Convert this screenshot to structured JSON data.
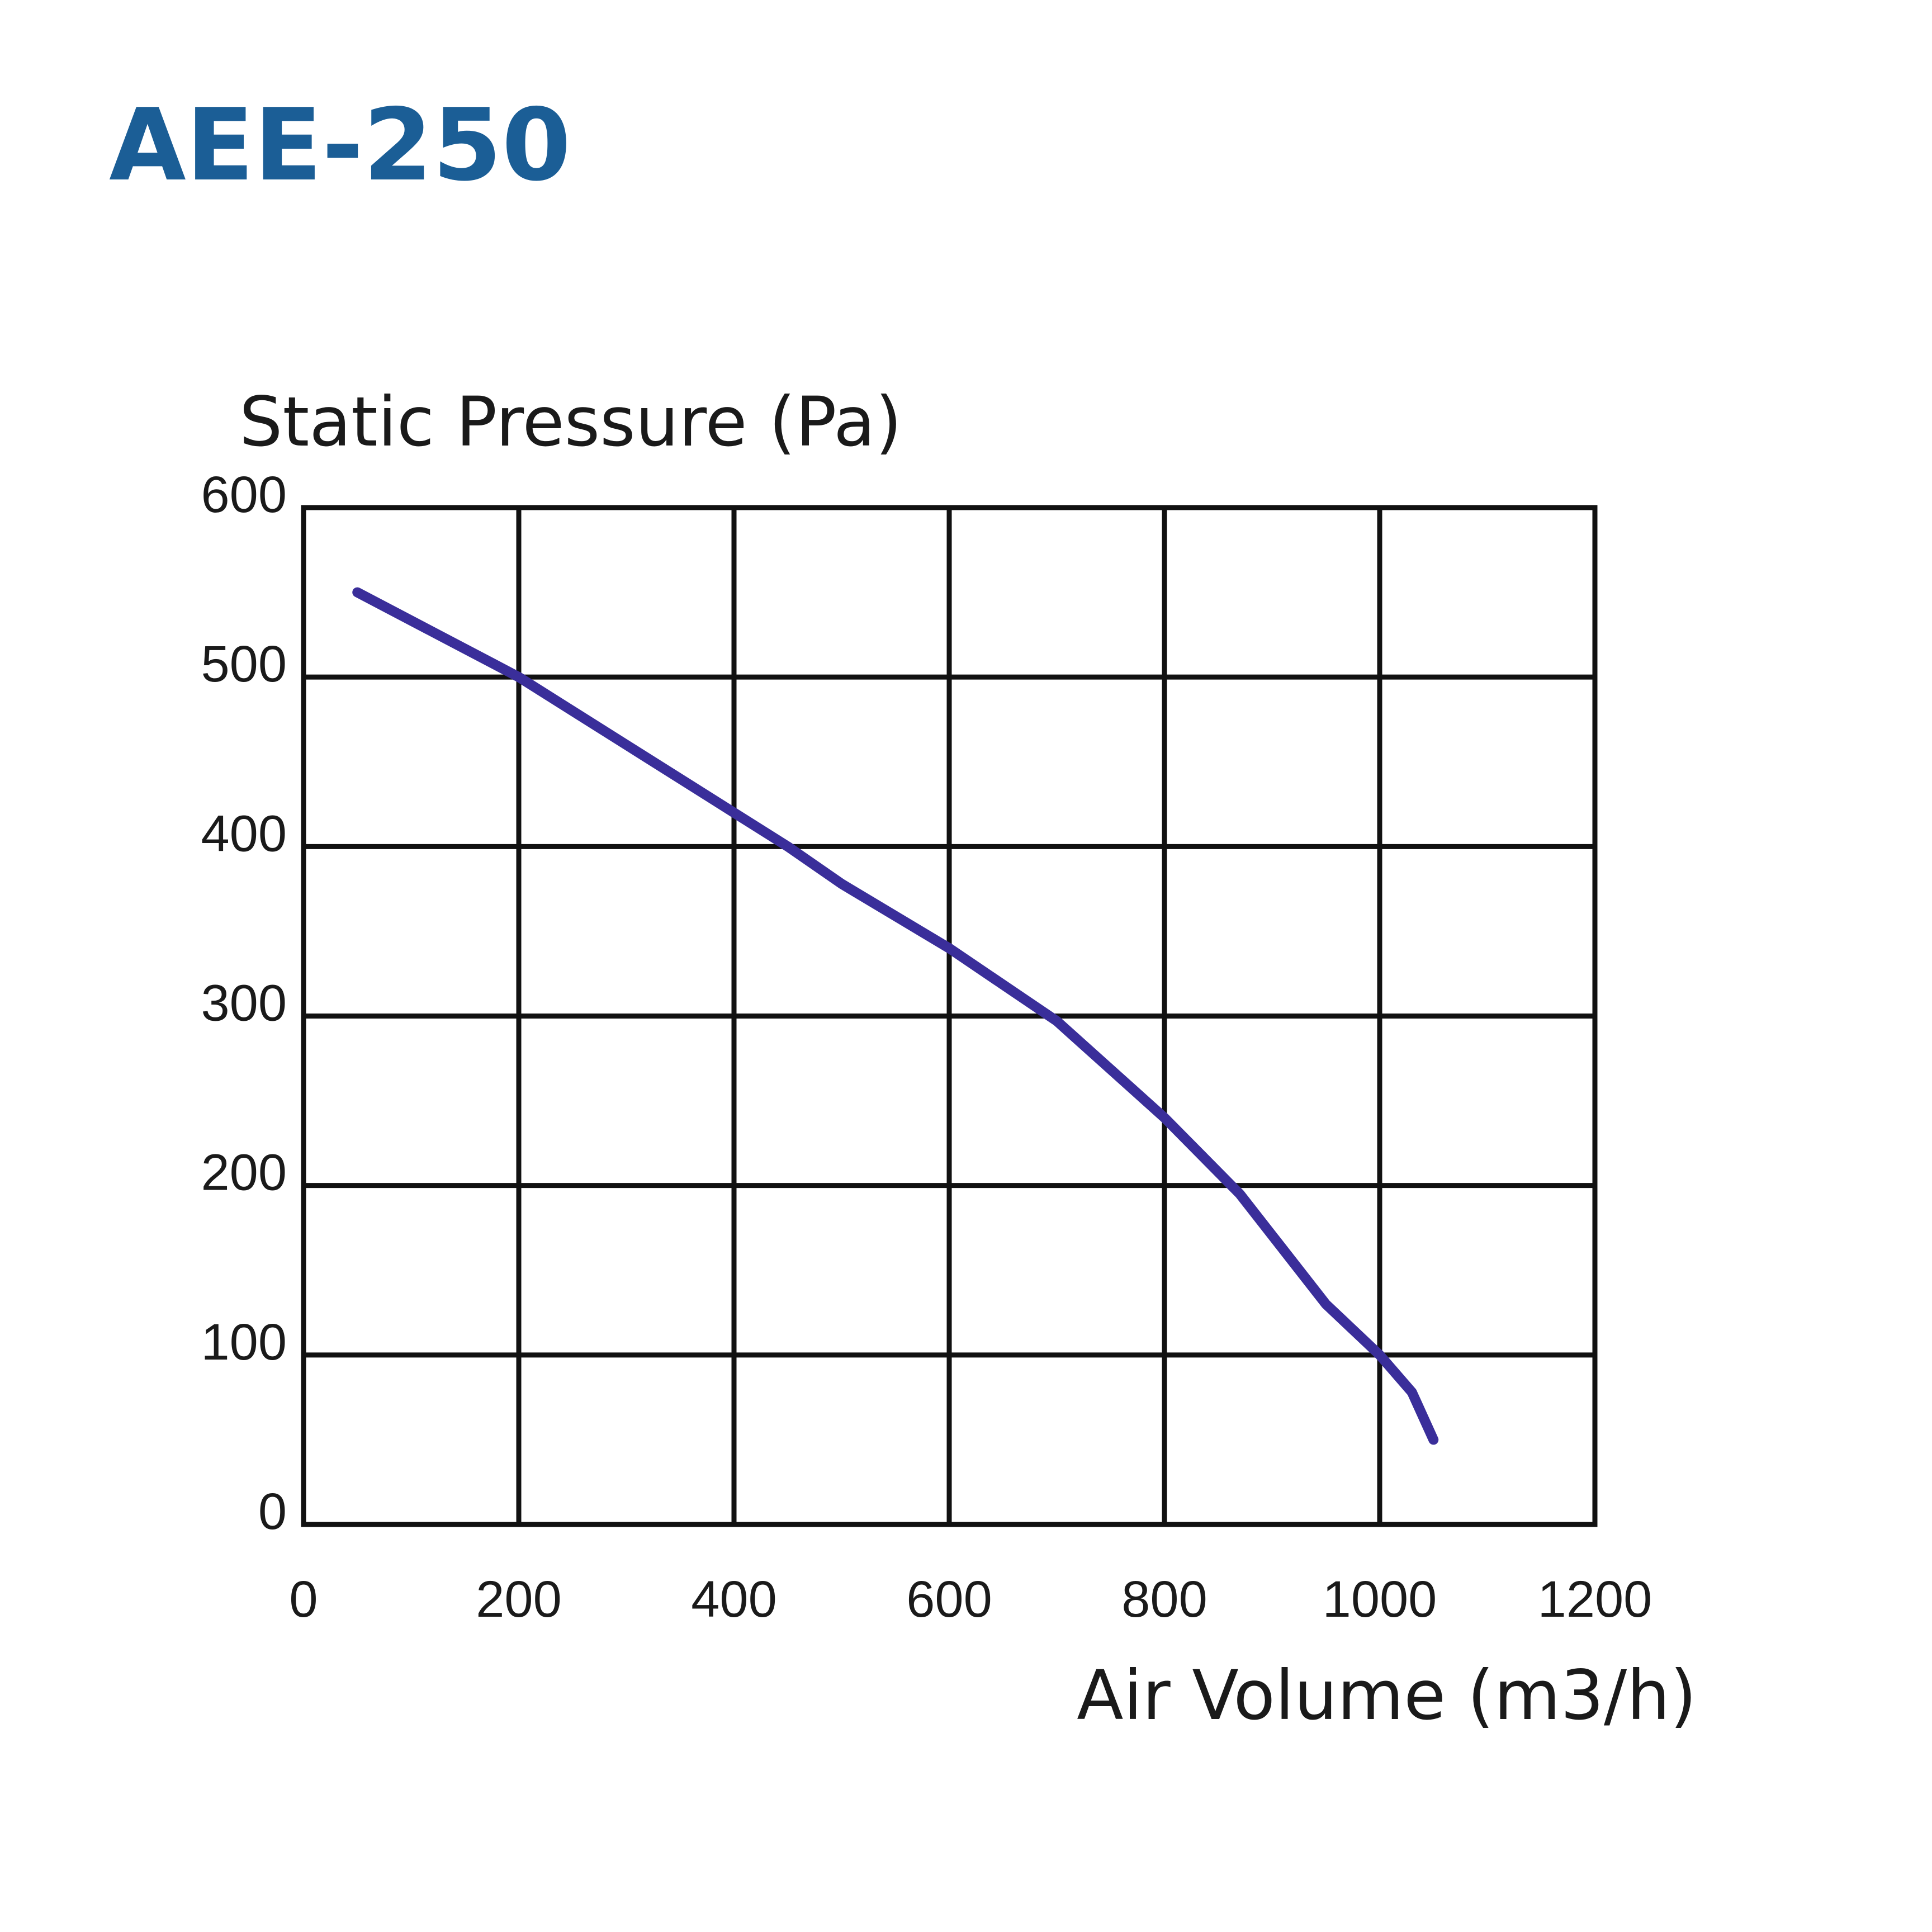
{
  "chart_data": {
    "type": "line",
    "title": "AEE-250",
    "y_label": "Static Pressure (Pa)",
    "x_label": "Air Volume (m3/h)",
    "x": [
      50,
      200,
      300,
      400,
      450,
      500,
      600,
      700,
      800,
      870,
      950,
      1000,
      1030,
      1050
    ],
    "series": [
      {
        "name": "AEE-250",
        "color": "#3a2e9a",
        "values": [
          550,
          500,
          460,
          420,
          400,
          378,
          340,
          297,
          240,
          195,
          130,
          100,
          78,
          50
        ]
      }
    ],
    "xlim": [
      0,
      1200
    ],
    "xticks": [
      0,
      200,
      400,
      600,
      800,
      1000,
      1200
    ],
    "ylim": [
      0,
      600
    ],
    "yticks": [
      0,
      100,
      200,
      300,
      400,
      500,
      600
    ],
    "grid": true
  }
}
